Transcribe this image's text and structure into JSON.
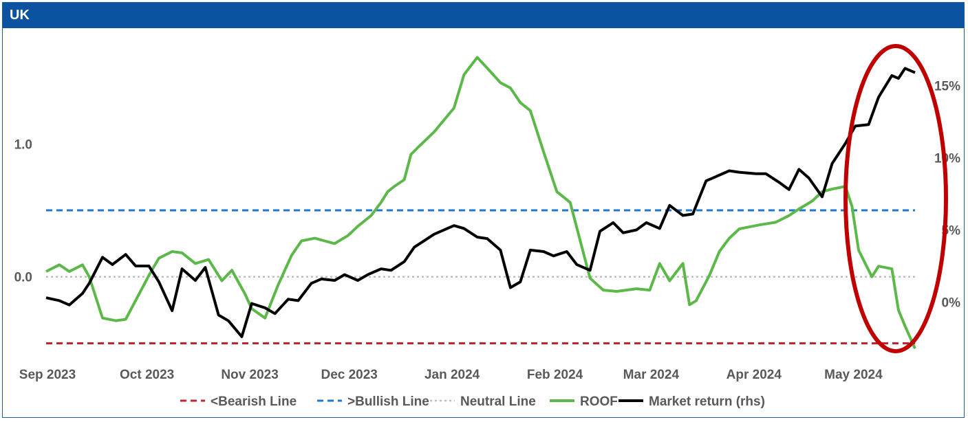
{
  "header": {
    "title": "UK"
  },
  "colors": {
    "bearish": "#c0262d",
    "bullish": "#1f77d0",
    "neutral": "#bfbfbf",
    "roof": "#5cb849",
    "market": "#000000",
    "highlight": "#c00000",
    "title_bar": "#0b52a0"
  },
  "chart_data": {
    "type": "line",
    "title": "UK",
    "x_range": [
      "2023-09-01",
      "2024-05-20"
    ],
    "x_ticks": [
      "Sep 2023",
      "Oct 2023",
      "Nov 2023",
      "Dec 2023",
      "Jan 2024",
      "Feb 2024",
      "Mar 2024",
      "Apr 2024",
      "May 2024"
    ],
    "y_left": {
      "ticks": [
        "0.0",
        "1.0"
      ],
      "tick_values": [
        0,
        1
      ],
      "range": [
        -0.57,
        1.72
      ]
    },
    "y_right": {
      "ticks": [
        "0%",
        "5%",
        "10%",
        "15%"
      ],
      "tick_values": [
        0,
        5,
        10,
        15
      ],
      "range": [
        -3.5,
        17.6
      ]
    },
    "grid": false,
    "legend_position": "bottom",
    "legend": [
      "<Bearish Line",
      ">Bullish Line",
      "Neutral Line",
      "ROOF",
      "Market return (rhs)"
    ],
    "series": [
      {
        "name": "<Bearish Line",
        "axis": "left",
        "style": "dashed",
        "x": [
          "2023-09-01",
          "2024-05-20"
        ],
        "y": [
          -0.5,
          -0.5
        ]
      },
      {
        "name": ">Bullish Line",
        "axis": "left",
        "style": "dashed",
        "x": [
          "2023-09-01",
          "2024-05-20"
        ],
        "y": [
          0.5,
          0.5
        ]
      },
      {
        "name": "Neutral Line",
        "axis": "left",
        "style": "dotted",
        "x": [
          "2023-09-01",
          "2024-05-20"
        ],
        "y": [
          0.0,
          0.0
        ]
      },
      {
        "name": "ROOF",
        "axis": "left",
        "style": "solid",
        "x": [
          "2023-09-01",
          "2023-09-05",
          "2023-09-08",
          "2023-09-12",
          "2023-09-14",
          "2023-09-18",
          "2023-09-22",
          "2023-09-25",
          "2023-10-02",
          "2023-10-05",
          "2023-10-09",
          "2023-10-12",
          "2023-10-16",
          "2023-10-20",
          "2023-10-24",
          "2023-10-27",
          "2023-10-31",
          "2023-11-02",
          "2023-11-06",
          "2023-11-10",
          "2023-11-14",
          "2023-11-17",
          "2023-11-21",
          "2023-11-24",
          "2023-11-27",
          "2023-12-01",
          "2023-12-04",
          "2023-12-08",
          "2023-12-11",
          "2023-12-13",
          "2023-12-15",
          "2023-12-18",
          "2023-12-20",
          "2023-12-22",
          "2023-12-27",
          "2024-01-02",
          "2024-01-05",
          "2024-01-09",
          "2024-01-12",
          "2024-01-16",
          "2024-01-19",
          "2024-01-22",
          "2024-01-25",
          "2024-01-29",
          "2024-02-02",
          "2024-02-06",
          "2024-02-12",
          "2024-02-16",
          "2024-02-20",
          "2024-02-26",
          "2024-03-01",
          "2024-03-04",
          "2024-03-07",
          "2024-03-11",
          "2024-03-13",
          "2024-03-15",
          "2024-03-19",
          "2024-03-22",
          "2024-03-25",
          "2024-03-28",
          "2024-04-03",
          "2024-04-08",
          "2024-04-12",
          "2024-04-15",
          "2024-04-19",
          "2024-04-22",
          "2024-04-25",
          "2024-04-29",
          "2024-05-01",
          "2024-05-03",
          "2024-05-07",
          "2024-05-09",
          "2024-05-13",
          "2024-05-15",
          "2024-05-17",
          "2024-05-20"
        ],
        "y": [
          0.04,
          0.09,
          0.04,
          0.09,
          0.0,
          -0.31,
          -0.33,
          -0.32,
          0.01,
          0.14,
          0.19,
          0.18,
          0.1,
          0.13,
          -0.03,
          0.05,
          -0.13,
          -0.24,
          -0.31,
          -0.06,
          0.16,
          0.27,
          0.29,
          0.27,
          0.25,
          0.31,
          0.38,
          0.46,
          0.56,
          0.64,
          0.68,
          0.73,
          0.92,
          0.97,
          1.09,
          1.27,
          1.52,
          1.65,
          1.57,
          1.46,
          1.42,
          1.31,
          1.25,
          0.94,
          0.64,
          0.56,
          -0.01,
          -0.1,
          -0.11,
          -0.09,
          -0.1,
          0.1,
          -0.03,
          0.1,
          -0.21,
          -0.18,
          0.01,
          0.19,
          0.29,
          0.36,
          0.39,
          0.41,
          0.46,
          0.51,
          0.57,
          0.64,
          0.66,
          0.68,
          0.53,
          0.2,
          0.0,
          0.08,
          0.06,
          -0.25,
          -0.37,
          -0.54
        ]
      },
      {
        "name": "Market return (rhs)",
        "axis": "right",
        "style": "solid",
        "x": [
          "2023-09-01",
          "2023-09-05",
          "2023-09-08",
          "2023-09-12",
          "2023-09-14",
          "2023-09-18",
          "2023-09-21",
          "2023-09-25",
          "2023-09-28",
          "2023-10-02",
          "2023-10-05",
          "2023-10-09",
          "2023-10-12",
          "2023-10-16",
          "2023-10-19",
          "2023-10-23",
          "2023-10-26",
          "2023-10-30",
          "2023-11-02",
          "2023-11-06",
          "2023-11-09",
          "2023-11-13",
          "2023-11-16",
          "2023-11-20",
          "2023-11-23",
          "2023-11-27",
          "2023-11-30",
          "2023-12-04",
          "2023-12-07",
          "2023-12-11",
          "2023-12-14",
          "2023-12-18",
          "2023-12-21",
          "2023-12-27",
          "2024-01-02",
          "2024-01-05",
          "2024-01-09",
          "2024-01-12",
          "2024-01-16",
          "2024-01-19",
          "2024-01-22",
          "2024-01-25",
          "2024-01-29",
          "2024-02-01",
          "2024-02-05",
          "2024-02-08",
          "2024-02-12",
          "2024-02-15",
          "2024-02-19",
          "2024-02-22",
          "2024-02-26",
          "2024-02-29",
          "2024-03-04",
          "2024-03-07",
          "2024-03-11",
          "2024-03-14",
          "2024-03-18",
          "2024-03-21",
          "2024-03-25",
          "2024-03-28",
          "2024-04-02",
          "2024-04-05",
          "2024-04-09",
          "2024-04-12",
          "2024-04-15",
          "2024-04-18",
          "2024-04-22",
          "2024-04-25",
          "2024-04-29",
          "2024-05-02",
          "2024-05-06",
          "2024-05-09",
          "2024-05-13",
          "2024-05-15",
          "2024-05-17",
          "2024-05-20"
        ],
        "y": [
          0.3,
          0.1,
          -0.2,
          0.6,
          1.3,
          3.1,
          2.6,
          3.3,
          2.5,
          2.5,
          1.4,
          -0.6,
          2.3,
          1.5,
          2.4,
          -0.9,
          -1.3,
          -2.4,
          -0.1,
          -0.4,
          -0.8,
          0.2,
          0.1,
          1.3,
          1.6,
          1.5,
          1.9,
          1.5,
          1.9,
          2.3,
          2.2,
          2.8,
          3.8,
          4.7,
          5.3,
          5.1,
          4.5,
          4.4,
          3.6,
          1.0,
          1.4,
          3.6,
          3.5,
          3.2,
          3.5,
          2.6,
          2.2,
          4.9,
          5.5,
          4.8,
          5.0,
          5.5,
          5.1,
          6.7,
          6.0,
          6.1,
          8.4,
          8.7,
          9.1,
          9.0,
          8.9,
          8.9,
          8.3,
          7.8,
          9.2,
          8.6,
          7.3,
          9.6,
          11.0,
          12.2,
          12.3,
          14.2,
          15.7,
          15.5,
          16.2,
          15.9
        ]
      }
    ]
  }
}
